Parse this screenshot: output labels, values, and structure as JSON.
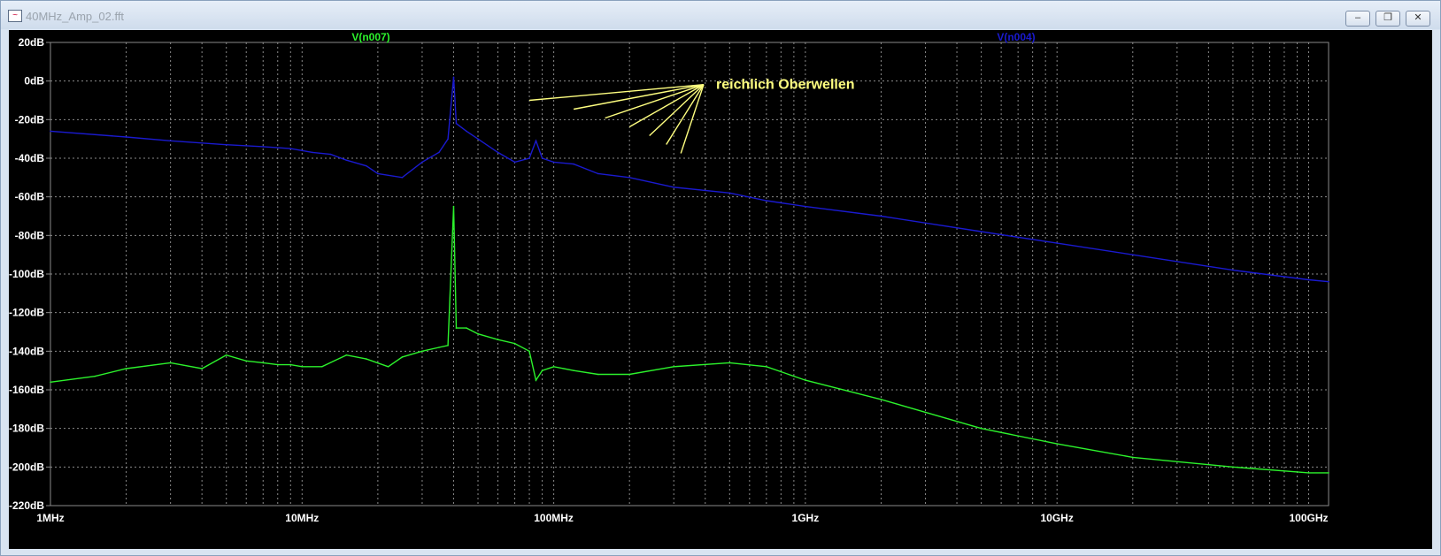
{
  "window": {
    "title": "40MHz_Amp_02.fft",
    "app_icon": "ltspice-waveform-icon",
    "controls": {
      "minimize": "minimize-icon",
      "restore": "restore-icon",
      "close": "close-icon"
    }
  },
  "colors": {
    "background": "#000000",
    "grid": "#8a8a8a",
    "axis_text": "#ffffff",
    "v_n007": "#2cf22c",
    "v_n004": "#1a1acf",
    "annotation": "#ffff80"
  },
  "annotation": {
    "text": "reichlich Oberwellen",
    "target_freqs_hz": [
      80000000,
      120000000,
      160000000,
      200000000,
      240000000,
      280000000,
      320000000
    ]
  },
  "chart_data": {
    "type": "line",
    "xlabel": "",
    "ylabel": "",
    "x_scale": "log",
    "xlim": [
      1000000,
      120000000000
    ],
    "ylim": [
      -220,
      20
    ],
    "grid": true,
    "x_ticks": [
      {
        "value": 1000000,
        "label": "1MHz"
      },
      {
        "value": 10000000,
        "label": "10MHz"
      },
      {
        "value": 100000000,
        "label": "100MHz"
      },
      {
        "value": 1000000000,
        "label": "1GHz"
      },
      {
        "value": 10000000000,
        "label": "10GHz"
      },
      {
        "value": 100000000000,
        "label": "100GHz"
      }
    ],
    "y_ticks": [
      {
        "value": 20,
        "label": "20dB"
      },
      {
        "value": 0,
        "label": "0dB"
      },
      {
        "value": -20,
        "label": "-20dB"
      },
      {
        "value": -40,
        "label": "-40dB"
      },
      {
        "value": -60,
        "label": "-60dB"
      },
      {
        "value": -80,
        "label": "-80dB"
      },
      {
        "value": -100,
        "label": "-100dB"
      },
      {
        "value": -120,
        "label": "-120dB"
      },
      {
        "value": -140,
        "label": "-140dB"
      },
      {
        "value": -160,
        "label": "-160dB"
      },
      {
        "value": -180,
        "label": "-180dB"
      },
      {
        "value": -200,
        "label": "-200dB"
      },
      {
        "value": -220,
        "label": "-220dB"
      }
    ],
    "series": [
      {
        "name": "V(n007)",
        "color": "#2cf22c",
        "label_position": "top-left",
        "points": [
          [
            1000000,
            -156
          ],
          [
            1500000,
            -153
          ],
          [
            2000000,
            -149
          ],
          [
            3000000,
            -146
          ],
          [
            4000000,
            -149
          ],
          [
            5000000,
            -142
          ],
          [
            6000000,
            -145
          ],
          [
            7000000,
            -146
          ],
          [
            8000000,
            -147
          ],
          [
            9000000,
            -147
          ],
          [
            10000000,
            -148
          ],
          [
            12000000,
            -148
          ],
          [
            15000000,
            -142
          ],
          [
            18000000,
            -144
          ],
          [
            22000000,
            -148
          ],
          [
            25000000,
            -143
          ],
          [
            30000000,
            -140
          ],
          [
            35000000,
            -138
          ],
          [
            38000000,
            -137
          ],
          [
            40000000,
            -65
          ],
          [
            41000000,
            -128
          ],
          [
            45000000,
            -128
          ],
          [
            50000000,
            -131
          ],
          [
            60000000,
            -134
          ],
          [
            70000000,
            -136
          ],
          [
            80000000,
            -140
          ],
          [
            85000000,
            -155
          ],
          [
            90000000,
            -150
          ],
          [
            100000000,
            -148
          ],
          [
            120000000,
            -150
          ],
          [
            150000000,
            -152
          ],
          [
            200000000,
            -152
          ],
          [
            300000000,
            -148
          ],
          [
            500000000,
            -146
          ],
          [
            700000000,
            -148
          ],
          [
            1000000000,
            -155
          ],
          [
            2000000000,
            -165
          ],
          [
            5000000000,
            -180
          ],
          [
            10000000000,
            -188
          ],
          [
            20000000000,
            -195
          ],
          [
            50000000000,
            -200
          ],
          [
            100000000000,
            -203
          ],
          [
            120000000000,
            -203
          ]
        ]
      },
      {
        "name": "V(n004)",
        "color": "#1a1acf",
        "label_position": "top-right",
        "points": [
          [
            1000000,
            -26
          ],
          [
            2000000,
            -29
          ],
          [
            3000000,
            -31
          ],
          [
            5000000,
            -33
          ],
          [
            7000000,
            -34
          ],
          [
            9000000,
            -35
          ],
          [
            11000000,
            -37
          ],
          [
            13000000,
            -38
          ],
          [
            15000000,
            -41
          ],
          [
            18000000,
            -44
          ],
          [
            20000000,
            -48
          ],
          [
            25000000,
            -50
          ],
          [
            30000000,
            -42
          ],
          [
            35000000,
            -37
          ],
          [
            38000000,
            -30
          ],
          [
            40000000,
            2
          ],
          [
            41000000,
            -22
          ],
          [
            45000000,
            -26
          ],
          [
            50000000,
            -30
          ],
          [
            60000000,
            -37
          ],
          [
            70000000,
            -42
          ],
          [
            80000000,
            -40
          ],
          [
            85000000,
            -31
          ],
          [
            90000000,
            -40
          ],
          [
            100000000,
            -42
          ],
          [
            120000000,
            -43
          ],
          [
            150000000,
            -48
          ],
          [
            200000000,
            -50
          ],
          [
            300000000,
            -55
          ],
          [
            500000000,
            -58
          ],
          [
            700000000,
            -62
          ],
          [
            1000000000,
            -65
          ],
          [
            2000000000,
            -70
          ],
          [
            5000000000,
            -78
          ],
          [
            10000000000,
            -84
          ],
          [
            20000000000,
            -90
          ],
          [
            50000000000,
            -98
          ],
          [
            100000000000,
            -103
          ],
          [
            120000000000,
            -104
          ]
        ]
      }
    ]
  }
}
